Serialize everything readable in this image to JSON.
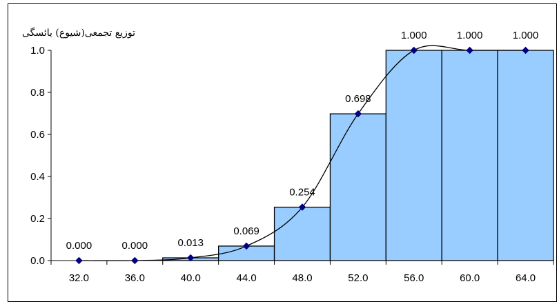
{
  "chart_data": {
    "type": "bar",
    "title": "توزیع تجمعی(شیوع) یائسگی",
    "xlabel": "",
    "ylabel": "",
    "categories": [
      "32.0",
      "36.0",
      "40.0",
      "44.0",
      "48.0",
      "52.0",
      "56.0",
      "60.0",
      "64.0"
    ],
    "values": [
      0.0,
      0.0,
      0.013,
      0.069,
      0.254,
      0.698,
      1.0,
      1.0,
      1.0
    ],
    "value_labels": [
      "0.000",
      "0.000",
      "0.013",
      "0.069",
      "0.254",
      "0.698",
      "1.000",
      "1.000",
      "1.000"
    ],
    "ylim": [
      0,
      1.0
    ],
    "yticks": [
      "0.0",
      "0.2",
      "0.4",
      "0.6",
      "0.8",
      "1.0"
    ],
    "overlay": "smoothed line with diamond markers at each value",
    "grid": false,
    "legend": "none",
    "colors": {
      "bar_fill": "#99ccff",
      "bar_stroke": "#000000",
      "marker": "#000080",
      "line": "#000000"
    }
  }
}
